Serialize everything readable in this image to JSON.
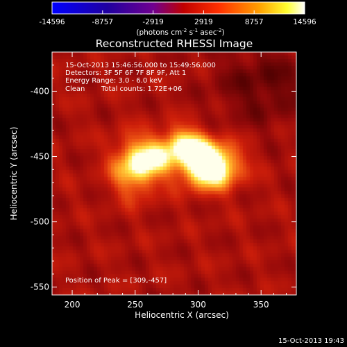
{
  "chart_data": {
    "type": "heatmap",
    "title": "Reconstructed RHESSI Image",
    "xlabel": "Heliocentric X (arcsec)",
    "ylabel": "Heliocentric Y (arcsec)",
    "xlim": [
      184,
      378
    ],
    "ylim": [
      -556,
      -370
    ],
    "x_ticks": [
      200,
      250,
      300,
      350
    ],
    "y_ticks": [
      -400,
      -450,
      -500,
      -550
    ],
    "colorbar": {
      "ticks": [
        "-14596",
        "-8757",
        "-2919",
        "2919",
        "8757",
        "14596"
      ],
      "range": [
        -14596,
        14596
      ],
      "units_prefix": "(photons cm",
      "units_exp1": "-2",
      "units_mid": " s",
      "units_exp2": "-1",
      "units_mid2": " asec",
      "units_exp3": "-2",
      "units_suffix": ")"
    },
    "annotations": {
      "time_range": "15-Oct-2013 15:46:56.000 to 15:49:56.000",
      "detectors": "Detectors: 3F 5F 6F 7F 8F 9F, Att 1",
      "energy": "Energy Range: 3.0 - 6.0 keV",
      "method": "Clean",
      "counts": "Total counts: 1.72E+06",
      "peak": "Position of Peak = [309,-457]"
    },
    "peak": [
      309,
      -457
    ],
    "sources": [
      {
        "x": 309,
        "y": -457,
        "rx": 16,
        "ry": 12,
        "amp": 1.0
      },
      {
        "x": 290,
        "y": -440,
        "rx": 12,
        "ry": 9,
        "amp": 0.55
      },
      {
        "x": 250,
        "y": -458,
        "rx": 13,
        "ry": 15,
        "amp": 0.62
      },
      {
        "x": 268,
        "y": -450,
        "rx": 12,
        "ry": 10,
        "amp": 0.4
      }
    ],
    "background_level": 0.32,
    "dark_region": {
      "x": 352,
      "y": -395,
      "rx": 28,
      "ry": 22
    },
    "colors": {
      "frame": "#ffffff",
      "background": "#000000"
    }
  },
  "footer": {
    "timestamp": "15-Oct-2013 19:43"
  }
}
